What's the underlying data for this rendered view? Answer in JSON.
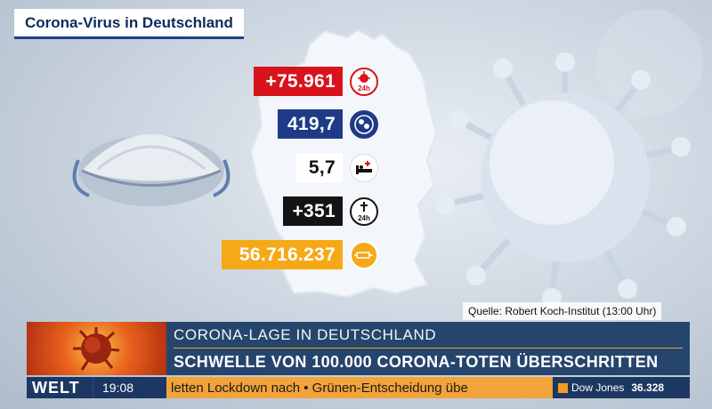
{
  "title": "Corona-Virus in Deutschland",
  "stats": [
    {
      "value": "+75.961",
      "icon": "virus-24h-icon",
      "icon_label": "24h",
      "color": "#d8131b"
    },
    {
      "value": "419,7",
      "icon": "virus-globe-icon",
      "color": "#1f3b88"
    },
    {
      "value": "5,7",
      "icon": "hospital-bed-icon",
      "color": "#ffffff"
    },
    {
      "value": "+351",
      "icon": "cross-24h-icon",
      "icon_label": "24h",
      "color": "#141414"
    },
    {
      "value": "56.716.237",
      "icon": "vaccine-syringe-icon",
      "color": "#f5a917"
    }
  ],
  "source": "Quelle: Robert Koch-Institut (13:00 Uhr)",
  "lower_third": {
    "kicker": "CORONA-LAGE IN DEUTSCHLAND",
    "headline": "SCHWELLE VON 100.000 CORONA-TOTEN ÜBERSCHRITTEN"
  },
  "ticker": {
    "brand": "WELT",
    "time": "19:08",
    "crawl": "letten Lockdown nach • Grünen-Entscheidung übe",
    "market_name": "Dow Jones",
    "market_value": "36.328"
  }
}
